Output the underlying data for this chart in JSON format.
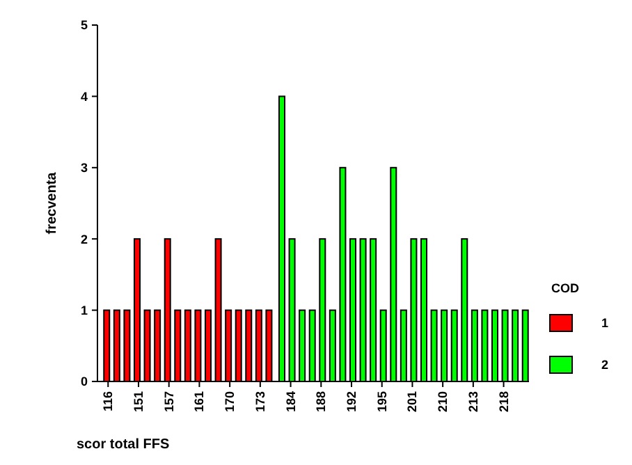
{
  "chart_data": {
    "type": "bar",
    "xlabel": "scor total FFS",
    "ylabel": "frecventa",
    "legend_title": "COD",
    "legend": "right",
    "categories": [
      "116",
      null,
      null,
      "151",
      null,
      null,
      "157",
      null,
      null,
      "161",
      null,
      null,
      "170",
      null,
      null,
      "173",
      null,
      null,
      "184",
      null,
      null,
      "188",
      null,
      null,
      "192",
      null,
      null,
      "195",
      null,
      null,
      "201",
      null,
      null,
      "210",
      null,
      null,
      "213",
      null,
      null,
      "218",
      null,
      null
    ],
    "series": [
      {
        "name": "1",
        "color": "#ff0000",
        "values": [
          1,
          1,
          1,
          2,
          1,
          1,
          2,
          1,
          1,
          1,
          1,
          2,
          1,
          1,
          1,
          1,
          1,
          null,
          null,
          null,
          null,
          null,
          null,
          null,
          null,
          null,
          null,
          null,
          null,
          null,
          null,
          null,
          null,
          null,
          null,
          null,
          null,
          null,
          null,
          null,
          null,
          null
        ]
      },
      {
        "name": "2",
        "color": "#00ff00",
        "values": [
          null,
          null,
          null,
          null,
          null,
          null,
          null,
          null,
          null,
          null,
          null,
          null,
          null,
          null,
          null,
          null,
          null,
          4,
          2,
          1,
          1,
          2,
          1,
          3,
          2,
          2,
          2,
          1,
          3,
          1,
          2,
          2,
          1,
          1,
          1,
          2,
          1,
          1,
          1,
          1,
          1,
          1
        ]
      }
    ],
    "ylim": [
      0,
      5
    ],
    "yticks": [
      0,
      1,
      2,
      3,
      4,
      5
    ],
    "grid": false
  }
}
